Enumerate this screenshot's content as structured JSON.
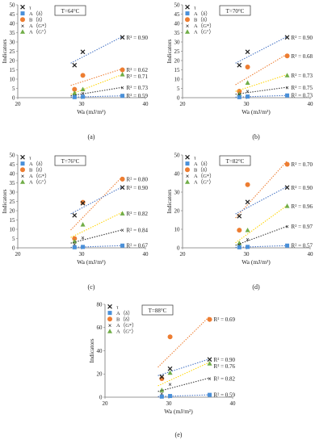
{
  "colors": {
    "tau": "#7b3fa6",
    "A_delta": "#4a90d9",
    "B_delta": "#ed7d31",
    "A_Gstar": "#111111",
    "A_Gpp": "#70ad47",
    "trend_tau": "#4472c4",
    "trend_B": "#ed7d31",
    "trend_Gstar": "#333333",
    "trend_Gpp": "#ffd400",
    "trend_A": "#4472c4"
  },
  "chart_data": [
    {
      "id": "a",
      "type": "scatter",
      "caption": "(a)",
      "temperature": "T=64°C",
      "xlabel": "Wa (mJ/m²)",
      "ylabel": "Indicators",
      "xlim": [
        20,
        40
      ],
      "ylim": [
        0,
        50
      ],
      "xticks": [
        "20",
        "30",
        "40"
      ],
      "yticks": [
        "0",
        "5",
        "10",
        "15",
        "20",
        "25",
        "30",
        "35",
        "40",
        "45",
        "50"
      ],
      "legend": [
        "τ",
        "A（δ）",
        "B（δ）",
        "A（G*）",
        "A（G\"）"
      ],
      "x": [
        28.9,
        30.2,
        36.4
      ],
      "series": [
        {
          "key": "tau",
          "values": [
            17.5,
            24.5,
            32.5
          ],
          "r2": "R² = 0.90"
        },
        {
          "key": "B_delta",
          "values": [
            4.5,
            12.0,
            15.0
          ],
          "r2": "R² = 0.62"
        },
        {
          "key": "A_Gpp",
          "values": [
            2.5,
            4.5,
            12.5
          ],
          "r2": "R² = 0.71"
        },
        {
          "key": "A_Gstar",
          "values": [
            1.0,
            2.5,
            5.5
          ],
          "r2": "R² = 0.73"
        },
        {
          "key": "A_delta",
          "values": [
            0.3,
            0.5,
            1.0
          ],
          "r2": "R² = 0.59"
        }
      ]
    },
    {
      "id": "b",
      "type": "scatter",
      "caption": "(b)",
      "temperature": "T=70°C",
      "xlabel": "Wa (mJ/m²)",
      "ylabel": "Indicators",
      "xlim": [
        20,
        40
      ],
      "ylim": [
        0,
        50
      ],
      "xticks": [
        "20",
        "30",
        "40"
      ],
      "yticks": [
        "0",
        "5",
        "10",
        "15",
        "20",
        "25",
        "30",
        "35",
        "40",
        "45",
        "50"
      ],
      "legend": [
        "τ",
        "A（δ）",
        "B（δ）",
        "A（G*）",
        "A（G\"）"
      ],
      "x": [
        28.9,
        30.2,
        36.4
      ],
      "series": [
        {
          "key": "tau",
          "values": [
            17.5,
            24.5,
            32.5
          ],
          "r2": "R² = 0.90"
        },
        {
          "key": "B_delta",
          "values": [
            3.5,
            16.5,
            22.5
          ],
          "r2": "R² = 0.68"
        },
        {
          "key": "A_Gpp",
          "values": [
            2.0,
            8.0,
            12.0
          ],
          "r2": "R² = 0.73"
        },
        {
          "key": "A_Gstar",
          "values": [
            1.5,
            3.5,
            5.5
          ],
          "r2": "R² = 0.75"
        },
        {
          "key": "A_delta",
          "values": [
            0.3,
            0.6,
            1.2
          ],
          "r2": "R² = 0.73"
        }
      ]
    },
    {
      "id": "c",
      "type": "scatter",
      "caption": "(c)",
      "temperature": "T=76°C",
      "xlabel": "Wa (mJ/m²)",
      "ylabel": "Indicators",
      "xlim": [
        20,
        40
      ],
      "ylim": [
        0,
        50
      ],
      "xticks": [
        "20",
        "30",
        "40"
      ],
      "yticks": [
        "0",
        "5",
        "10",
        "15",
        "20",
        "25",
        "30",
        "35",
        "40",
        "45",
        "50"
      ],
      "legend": [
        "τ",
        "A（δ）",
        "B（δ）",
        "A（G*）",
        "A（G\"）"
      ],
      "x": [
        28.9,
        30.2,
        36.4
      ],
      "series": [
        {
          "key": "B_delta",
          "values": [
            5.0,
            24.5,
            37.0
          ],
          "r2": "R² = 0.80"
        },
        {
          "key": "tau",
          "values": [
            17.5,
            24.0,
            32.5
          ],
          "r2": "R² = 0.90"
        },
        {
          "key": "A_Gpp",
          "values": [
            3.5,
            12.5,
            18.5
          ],
          "r2": "R² = 0.82"
        },
        {
          "key": "A_Gstar",
          "values": [
            2.0,
            5.5,
            9.5
          ],
          "r2": "R² = 0.84"
        },
        {
          "key": "A_delta",
          "values": [
            0.3,
            0.5,
            1.2
          ],
          "r2": "R² = 0.67"
        }
      ]
    },
    {
      "id": "d",
      "type": "scatter",
      "caption": "(d)",
      "temperature": "T=82°C",
      "xlabel": "Wa (mJ/m²)",
      "ylabel": "Indicators",
      "xlim": [
        20,
        40
      ],
      "ylim": [
        0,
        50
      ],
      "xticks": [
        "20",
        "30",
        "40"
      ],
      "yticks": [
        "0",
        "10",
        "20",
        "30",
        "40",
        "50"
      ],
      "legend": [
        "τ",
        "A（δ）",
        "B（δ）",
        "A（G*）",
        "A（G\"）"
      ],
      "x": [
        28.9,
        30.2,
        36.4
      ],
      "series": [
        {
          "key": "B_delta",
          "values": [
            9.5,
            34.0,
            45.0
          ],
          "r2": "R² = 0.70"
        },
        {
          "key": "tau",
          "values": [
            17.0,
            24.5,
            32.5
          ],
          "r2": "R² = 0.90"
        },
        {
          "key": "A_Gpp",
          "values": [
            2.5,
            9.5,
            22.5
          ],
          "r2": "R² = 0.96"
        },
        {
          "key": "A_Gstar",
          "values": [
            1.5,
            4.5,
            11.5
          ],
          "r2": "R² = 0.97"
        },
        {
          "key": "A_delta",
          "values": [
            0.3,
            0.5,
            1.2
          ],
          "r2": "R² = 0.57"
        }
      ]
    },
    {
      "id": "e",
      "type": "scatter",
      "caption": "(e)",
      "temperature": "T=88°C",
      "xlabel": "Wa (mJ/m²)",
      "ylabel": "Indicators",
      "xlim": [
        20,
        40
      ],
      "ylim": [
        0,
        80
      ],
      "xticks": [
        "20",
        "30",
        "40"
      ],
      "yticks": [
        "0",
        "20",
        "40",
        "60",
        "80"
      ],
      "legend": [
        "τ",
        "A（δ）",
        "B（δ）",
        "A（G*）",
        "A（G\"）"
      ],
      "x": [
        28.9,
        30.2,
        36.4
      ],
      "series": [
        {
          "key": "B_delta",
          "values": [
            16.0,
            52.0,
            67.0
          ],
          "r2": "R² = 0.69"
        },
        {
          "key": "tau",
          "values": [
            17.5,
            24.5,
            32.5
          ],
          "r2": "R² = 0.90"
        },
        {
          "key": "A_Gpp",
          "values": [
            6.0,
            21.0,
            29.0
          ],
          "r2": "R² = 0.76"
        },
        {
          "key": "A_Gstar",
          "values": [
            3.0,
            11.0,
            16.0
          ],
          "r2": "R² = 0.82"
        },
        {
          "key": "A_delta",
          "values": [
            0.5,
            1.0,
            2.0
          ],
          "r2": "R² = 0.59"
        }
      ]
    }
  ]
}
